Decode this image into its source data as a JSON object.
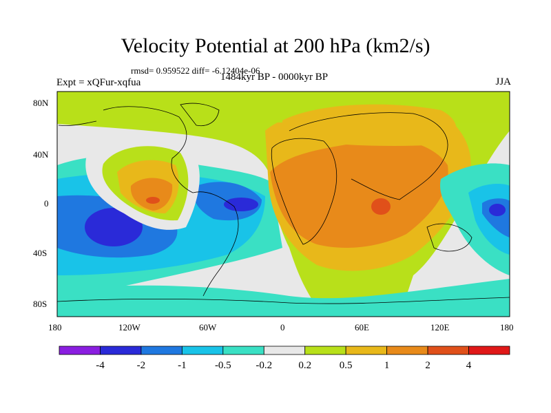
{
  "title": "Velocity Potential at 200 hPa (km2/s)",
  "stats": "rmsd= 0.959522 diff= -6.12404e-06",
  "experiment": "Expt = xQFur-xqfua",
  "period": "1484kyr BP - 0000kyr BP",
  "season": "JJA",
  "lat_labels": [
    "80N",
    "40N",
    "0",
    "40S",
    "80S"
  ],
  "lon_labels": [
    "180",
    "120W",
    "60W",
    "0",
    "60E",
    "120E",
    "180"
  ],
  "colorbar": {
    "labels": [
      "-4",
      "-2",
      "-1",
      "-0.5",
      "-0.2",
      "0.2",
      "0.5",
      "1",
      "2",
      "4"
    ],
    "colors": [
      "#8a1ee0",
      "#2a2ad8",
      "#1f78e0",
      "#19c3e8",
      "#3ae0c4",
      "#e8e8e8",
      "#b8e01a",
      "#e8b81a",
      "#e88a1a",
      "#e0501a",
      "#e01818"
    ]
  }
}
